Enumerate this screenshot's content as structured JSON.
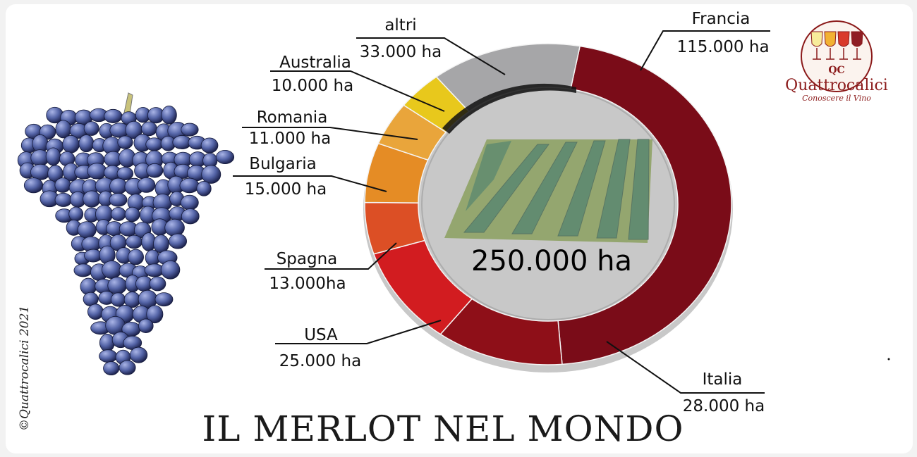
{
  "title": "IL MERLOT NEL MONDO",
  "copyright": "©Quattrocalici 2021",
  "brand": {
    "initials": "QC",
    "name": "Quattrocalici",
    "tagline": "Conoscere il Vino"
  },
  "chart_data": {
    "type": "pie",
    "variant": "donut",
    "total_label": "250.000 ha",
    "slices": [
      {
        "name": "Francia",
        "value_label": "115.000 ha",
        "value": 115000,
        "color": "#7a0c18"
      },
      {
        "name": "Italia",
        "value_label": "28.000 ha",
        "value": 28000,
        "color": "#8e0f18"
      },
      {
        "name": "USA",
        "value_label": "25.000 ha",
        "value": 25000,
        "color": "#d21c20"
      },
      {
        "name": "Spagna",
        "value_label": "13.000ha",
        "value": 13000,
        "color": "#dc4f25"
      },
      {
        "name": "Bulgaria",
        "value_label": "15.000 ha",
        "value": 15000,
        "color": "#e58c25"
      },
      {
        "name": "Romania",
        "value_label": "11.000 ha",
        "value": 11000,
        "color": "#e9a53b"
      },
      {
        "name": "Australia",
        "value_label": "10.000 ha",
        "value": 10000,
        "color": "#e8c81c"
      },
      {
        "name": "altri",
        "value_label": "33.000 ha",
        "value": 33000,
        "color": "#a6a6a8"
      }
    ]
  }
}
